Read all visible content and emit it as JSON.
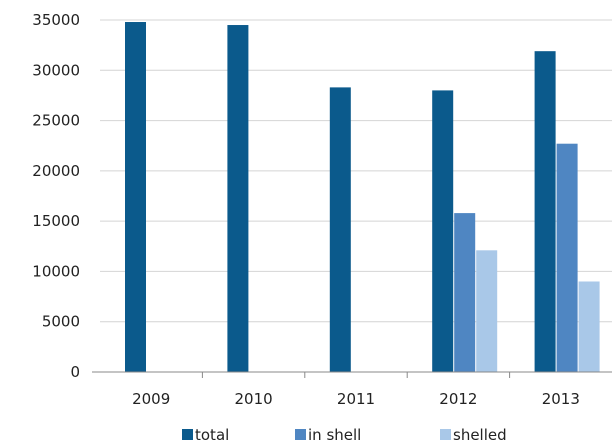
{
  "chart_data": {
    "type": "bar",
    "categories": [
      "2009",
      "2010",
      "2011",
      "2012",
      "2013"
    ],
    "series": [
      {
        "name": "total",
        "color": "#0b5a8c",
        "values": [
          34800,
          34500,
          28300,
          28000,
          31900
        ]
      },
      {
        "name": "in shell",
        "color": "#4f86c2",
        "values": [
          null,
          null,
          null,
          15800,
          22700
        ]
      },
      {
        "name": "shelled",
        "color": "#a9c8e8",
        "values": [
          null,
          null,
          null,
          12100,
          9000
        ]
      }
    ],
    "ylim": [
      0,
      35000
    ],
    "yticks": [
      "0",
      "5000",
      "10000",
      "15000",
      "20000",
      "25000",
      "30000",
      "35000"
    ],
    "grid": true,
    "legend_position": "bottom"
  }
}
